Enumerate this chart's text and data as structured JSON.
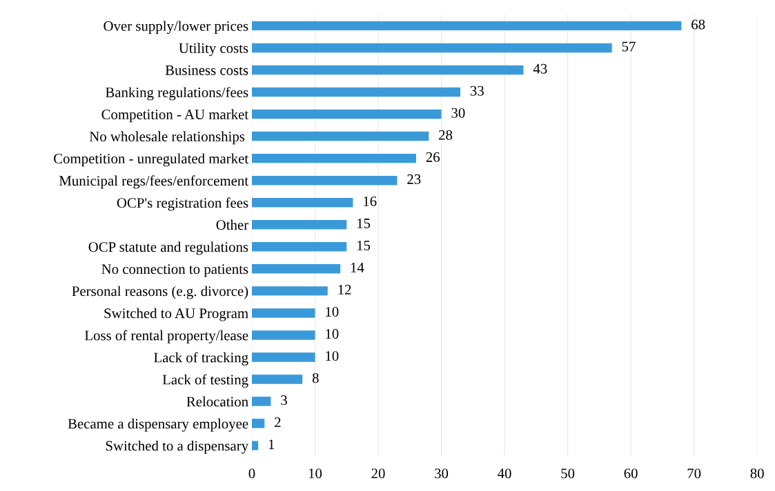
{
  "chart_data": {
    "type": "bar",
    "orientation": "horizontal",
    "categories": [
      "Over supply/lower prices",
      "Utility costs",
      "Business costs",
      "Banking regulations/fees",
      "Competition - AU market",
      "No wholesale relationships ",
      "Competition - unregulated market",
      "Municipal regs/fees/enforcement",
      "OCP's registration fees",
      "Other",
      "OCP statute and regulations",
      "No connection to patients",
      "Personal reasons (e.g. divorce)",
      "Switched to AU Program",
      "Loss of rental property/lease",
      "Lack of tracking",
      "Lack of testing",
      "Relocation",
      "Became a dispensary employee",
      "Switched to a dispensary"
    ],
    "values": [
      68,
      57,
      43,
      33,
      30,
      28,
      26,
      23,
      16,
      15,
      15,
      14,
      12,
      10,
      10,
      10,
      8,
      3,
      2,
      1
    ],
    "color": "#3a9ad9",
    "xlim": [
      0,
      80
    ],
    "xticks": [
      0,
      10,
      20,
      30,
      40,
      50,
      60,
      70,
      80
    ],
    "grid": "x",
    "data_labels": true
  }
}
